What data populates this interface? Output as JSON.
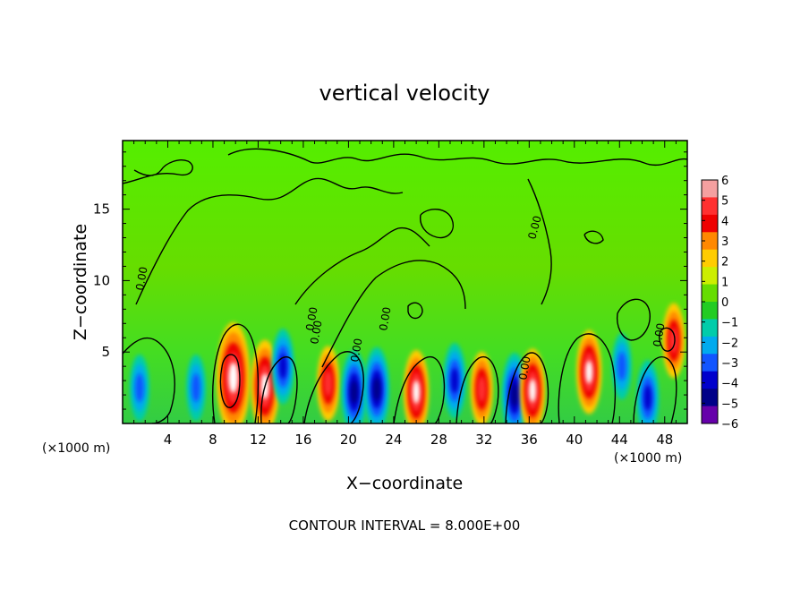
{
  "chart_data": {
    "type": "heatmap",
    "title": "vertical velocity",
    "xlabel": "X−coordinate",
    "ylabel": "Z−coordinate",
    "x_unit_left": "(×1000 m)",
    "x_unit_right": "(×1000 m)",
    "footer": "CONTOUR INTERVAL = 8.000E+00",
    "xlim": [
      0,
      50
    ],
    "ylim": [
      0,
      19.8
    ],
    "x_ticks": [
      "4",
      "8",
      "12",
      "16",
      "20",
      "24",
      "28",
      "32",
      "36",
      "40",
      "44",
      "48"
    ],
    "y_ticks": [
      "5",
      "10",
      "15"
    ],
    "colorbar": {
      "range": [
        -6,
        6
      ],
      "labels": [
        "6",
        "5",
        "4",
        "3",
        "2",
        "1",
        "0",
        "−1",
        "−2",
        "−3",
        "−4",
        "−5",
        "−6"
      ],
      "colors": [
        "#f4a0a0",
        "#ff3030",
        "#ee0000",
        "#ff8800",
        "#ffcc00",
        "#ccee00",
        "#66dd00",
        "#22cc22",
        "#00ccaa",
        "#00aaee",
        "#1155ff",
        "#0000cc",
        "#000088",
        "#6600aa"
      ]
    },
    "contour_labels": [
      "0.00",
      "0.00",
      "0.00",
      "0.00",
      "0.00",
      "0.00",
      "0.00",
      "0.00"
    ],
    "features": [
      {
        "x": 9.8,
        "z": 3.2,
        "w": 8
      },
      {
        "x": 12.6,
        "z": 2.6,
        "w": 6
      },
      {
        "x": 14.2,
        "z": 4.0,
        "w": -4
      },
      {
        "x": 18.2,
        "z": 2.8,
        "w": 4
      },
      {
        "x": 20.5,
        "z": 2.2,
        "w": -5
      },
      {
        "x": 22.5,
        "z": 2.4,
        "w": -5
      },
      {
        "x": 26.0,
        "z": 2.2,
        "w": 5
      },
      {
        "x": 29.4,
        "z": 3.0,
        "w": -4
      },
      {
        "x": 31.8,
        "z": 2.4,
        "w": 4
      },
      {
        "x": 34.7,
        "z": 2.0,
        "w": -5
      },
      {
        "x": 36.3,
        "z": 2.3,
        "w": 5
      },
      {
        "x": 41.3,
        "z": 3.6,
        "w": 5
      },
      {
        "x": 44.2,
        "z": 4.0,
        "w": -3
      },
      {
        "x": 46.5,
        "z": 1.8,
        "w": -4
      },
      {
        "x": 48.8,
        "z": 5.8,
        "w": 4
      },
      {
        "x": 1.5,
        "z": 2.5,
        "w": -3
      },
      {
        "x": 6.5,
        "z": 2.5,
        "w": -3
      }
    ]
  }
}
